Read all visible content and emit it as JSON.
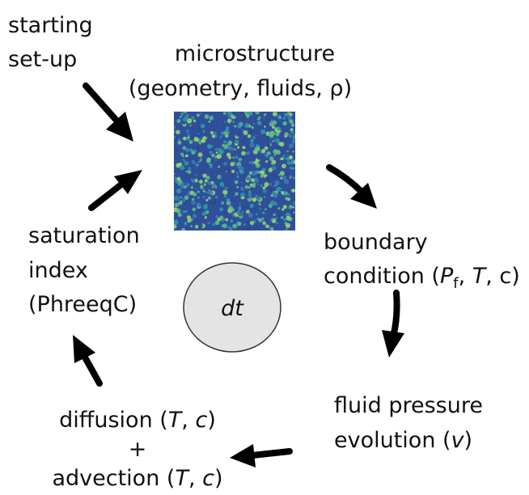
{
  "nodes": [
    {
      "lines": [
        [
          "starting"
        ],
        [
          "set-up"
        ]
      ]
    },
    {
      "lines": [
        [
          "microstructure"
        ],
        [
          "(geometry, fluids, ρ)"
        ]
      ]
    },
    {
      "lines": [
        [
          "boundary"
        ],
        [
          "condition (",
          "P",
          "f",
          ", ",
          "T",
          ", c)"
        ]
      ]
    },
    {
      "lines": [
        [
          "fluid pressure"
        ],
        [
          "evolution (",
          "v",
          ")"
        ]
      ]
    },
    {
      "lines": [
        [
          "diffusion (",
          "T",
          ", ",
          "c",
          ")"
        ],
        [
          "+"
        ],
        [
          "advection (",
          "T",
          ", ",
          "c",
          ")"
        ]
      ]
    },
    {
      "lines": [
        [
          "saturation"
        ],
        [
          "index"
        ],
        [
          "(PhreeqC)"
        ]
      ]
    }
  ],
  "center": "dt"
}
